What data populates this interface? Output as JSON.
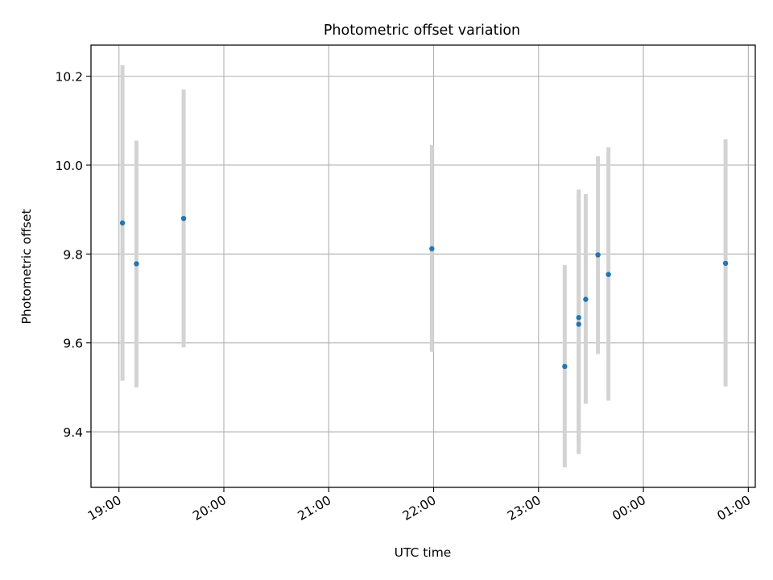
{
  "chart_data": {
    "type": "scatter",
    "title": "Photometric offset variation",
    "xlabel": "UTC time",
    "ylabel": "Photometric offset",
    "x_axis_type": "time",
    "x_tick_labels": [
      "19:00",
      "20:00",
      "21:00",
      "22:00",
      "23:00",
      "00:00",
      "01:00"
    ],
    "x_ticks": [
      "19:00",
      "20:00",
      "21:00",
      "22:00",
      "23:00",
      "24:00",
      "25:00"
    ],
    "xlim": [
      "18:44",
      "25:04"
    ],
    "y_ticks": [
      9.4,
      9.6,
      9.8,
      10.0,
      10.2
    ],
    "y_tick_labels": [
      "9.4",
      "9.6",
      "9.8",
      "10.0",
      "10.2"
    ],
    "ylim": [
      9.275,
      10.27
    ],
    "grid": true,
    "point_color": "#1f77b4",
    "errorbar_color": "#d3d3d3",
    "series": [
      {
        "points": [
          {
            "x": "19:02",
            "y": 9.87,
            "yerr_low": 9.515,
            "yerr_high": 10.225
          },
          {
            "x": "19:10",
            "y": 9.778,
            "yerr_low": 9.5,
            "yerr_high": 10.055
          },
          {
            "x": "19:37",
            "y": 9.88,
            "yerr_low": 9.59,
            "yerr_high": 10.17
          },
          {
            "x": "21:59",
            "y": 9.812,
            "yerr_low": 9.58,
            "yerr_high": 10.045
          },
          {
            "x": "23:15",
            "y": 9.547,
            "yerr_low": 9.32,
            "yerr_high": 9.775
          },
          {
            "x": "23:23",
            "y": 9.642,
            "yerr_low": 9.35,
            "yerr_high": 9.945
          },
          {
            "x": "23:23",
            "y": 9.657,
            "yerr_low": 9.37,
            "yerr_high": 9.935
          },
          {
            "x": "23:27",
            "y": 9.698,
            "yerr_low": 9.463,
            "yerr_high": 9.935
          },
          {
            "x": "23:34",
            "y": 9.798,
            "yerr_low": 9.575,
            "yerr_high": 10.02
          },
          {
            "x": "23:40",
            "y": 9.754,
            "yerr_low": 9.47,
            "yerr_high": 10.04
          },
          {
            "x": "24:47",
            "y": 9.779,
            "yerr_low": 9.502,
            "yerr_high": 10.058
          }
        ]
      }
    ]
  }
}
